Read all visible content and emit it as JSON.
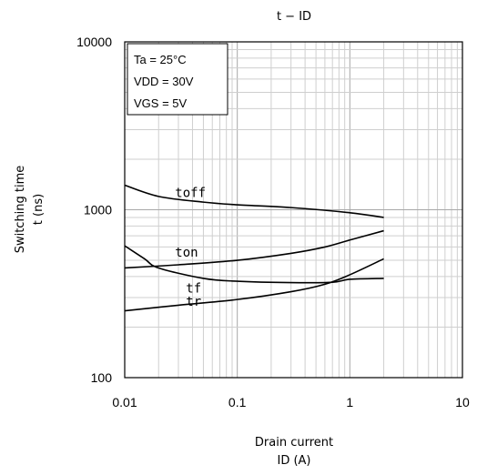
{
  "chart_data": {
    "type": "line",
    "title": "t − ID",
    "xlabel_line1": "Drain current",
    "xlabel_line2": "ID (A)",
    "ylabel_line1": "Switching time",
    "ylabel_line2": "t (ns)",
    "x_scale": "log",
    "y_scale": "log",
    "xlim": [
      0.01,
      10
    ],
    "ylim": [
      100,
      10000
    ],
    "x_ticks": [
      0.01,
      0.1,
      1,
      10
    ],
    "x_tick_labels": [
      "0.01",
      "0.1",
      "1",
      "10"
    ],
    "y_ticks": [
      100,
      1000,
      10000
    ],
    "y_tick_labels": [
      "100",
      "1000",
      "10000"
    ],
    "grid": true,
    "conditions": [
      "Ta = 25°C",
      "VDD = 30V",
      "VGS = 5V"
    ],
    "series": [
      {
        "name": "toff",
        "label_at": [
          0.028,
          1190
        ],
        "points": [
          [
            0.01,
            1400
          ],
          [
            0.02,
            1200
          ],
          [
            0.05,
            1110
          ],
          [
            0.1,
            1070
          ],
          [
            0.3,
            1030
          ],
          [
            1,
            960
          ],
          [
            2,
            900
          ]
        ]
      },
      {
        "name": "ton",
        "label_at": [
          0.028,
          525
        ],
        "points": [
          [
            0.01,
            450
          ],
          [
            0.03,
            470
          ],
          [
            0.1,
            500
          ],
          [
            0.3,
            550
          ],
          [
            0.6,
            600
          ],
          [
            1,
            660
          ],
          [
            2,
            750
          ]
        ]
      },
      {
        "name": "tf",
        "label_at": [
          0.035,
          322
        ],
        "points": [
          [
            0.01,
            610
          ],
          [
            0.015,
            510
          ],
          [
            0.02,
            450
          ],
          [
            0.05,
            390
          ],
          [
            0.1,
            375
          ],
          [
            0.3,
            368
          ],
          [
            0.7,
            370
          ],
          [
            1,
            385
          ],
          [
            2,
            390
          ]
        ]
      },
      {
        "name": "tr",
        "label_at": [
          0.035,
          268
        ],
        "points": [
          [
            0.01,
            250
          ],
          [
            0.03,
            270
          ],
          [
            0.1,
            292
          ],
          [
            0.3,
            325
          ],
          [
            0.6,
            360
          ],
          [
            1,
            410
          ],
          [
            2,
            510
          ]
        ]
      }
    ]
  }
}
